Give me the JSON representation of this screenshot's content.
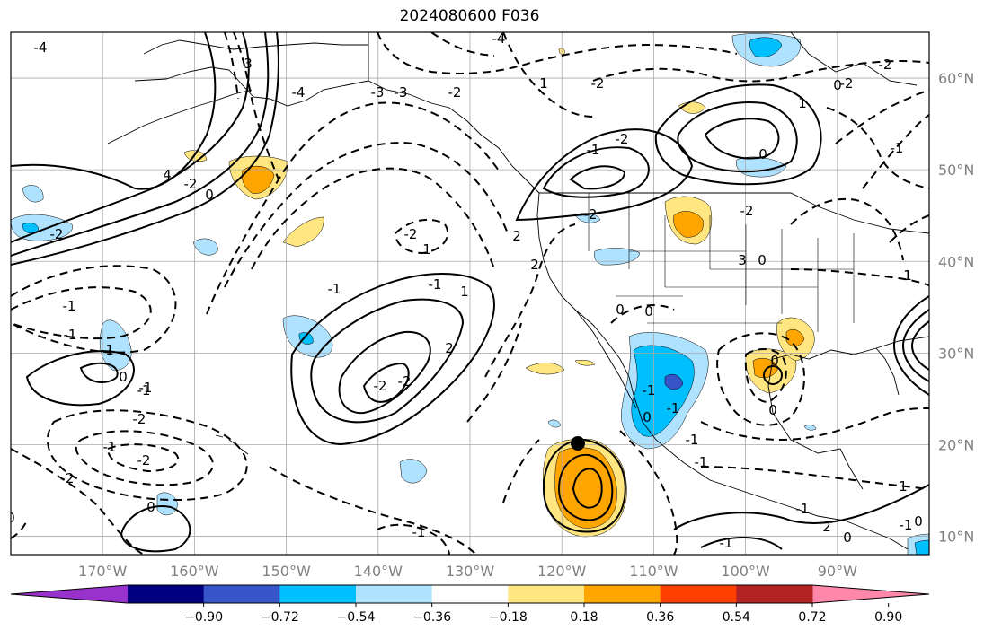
{
  "title": "2024080600 F036",
  "map": {
    "projection": "equirectangular",
    "lon_range": [
      -180,
      -80
    ],
    "lat_range": [
      8,
      65
    ],
    "gridlines": true,
    "contour_style": "solid positive, dashed negative",
    "lat_labels": [
      "60°N",
      "50°N",
      "40°N",
      "30°N",
      "20°N",
      "10°N"
    ],
    "lon_labels": [
      "170°W",
      "160°W",
      "150°W",
      "140°W",
      "130°W",
      "120°W",
      "110°W",
      "100°W",
      "90°W"
    ],
    "contour_labels": [
      "-4",
      "-4",
      "3",
      "-4",
      "-3",
      "-3",
      "-2",
      "1",
      "-2",
      "4",
      "-2",
      "0",
      "-2",
      "-1",
      "-1",
      "0",
      "1",
      "-1",
      "-2",
      "-1",
      "-2",
      "-1",
      "-2",
      "0",
      "0",
      "-2",
      "1",
      "2",
      "-2",
      "-2",
      "1",
      "-1",
      "-1",
      "-2",
      "0",
      "0",
      "-1",
      "-2",
      "0",
      "2",
      "2",
      "3",
      "0",
      "-2",
      "-1",
      "-2",
      "0",
      "-2",
      "1",
      "0",
      "-1",
      "-1",
      "-1",
      "-1",
      "0",
      "0",
      "-1",
      "-1",
      "0",
      "2",
      "1",
      "-1",
      "1",
      "0",
      "-1"
    ]
  },
  "colorbar": {
    "tick_labels": [
      "−0.90",
      "−0.72",
      "−0.54",
      "−0.36",
      "−0.18",
      "0.18",
      "0.36",
      "0.54",
      "0.72",
      "0.90"
    ],
    "colors": [
      "#9932cc",
      "#000080",
      "#3655c8",
      "#00bfff",
      "#aee2ff",
      "#ffffff",
      "#ffe680",
      "#ffa500",
      "#ff4000",
      "#b22222",
      "#ff88aa"
    ]
  },
  "colors": {
    "light_blue": "#aee2ff",
    "blue": "#00bfff",
    "mid_blue": "#3655c8",
    "yellow": "#ffe680",
    "orange": "#ffa500",
    "grid": "#a9a9a9",
    "label_gray": "#808080"
  }
}
